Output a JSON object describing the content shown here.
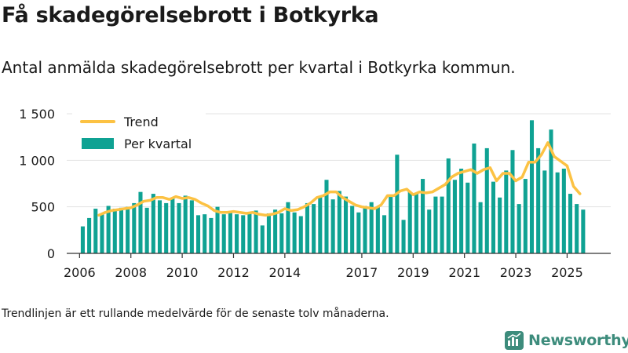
{
  "title": "Få skadegörelsebrott i Botkyrka",
  "subtitle": "Antal anmälda skadegörelsebrott per kvartal i Botkyrka kommun.",
  "footnote": "Trendlinjen är ett rullande medelvärde för de senaste tolv månaderna.",
  "brand": {
    "name": "Newsworthy"
  },
  "colors": {
    "bar": "#0fa293",
    "trend": "#fcc243",
    "axis": "#333333",
    "grid": "#e3e3e3",
    "brand": "#3d8c7c"
  },
  "chart_data": {
    "type": "bar",
    "title": "Få skadegörelsebrott i Botkyrka",
    "xlabel": "",
    "ylabel": "",
    "ylim": [
      0,
      1500
    ],
    "xlim": [
      2005.5,
      2026.7
    ],
    "yticks": [
      0,
      500,
      1000,
      1500
    ],
    "ytick_labels": [
      "0",
      "500",
      "1 000",
      "1 500"
    ],
    "xticks": [
      2006,
      2008,
      2010,
      2012,
      2014,
      2017,
      2019,
      2021,
      2023,
      2025
    ],
    "xtick_labels": [
      "2006",
      "2008",
      "2010",
      "2012",
      "2014",
      "2017",
      "2019",
      "2021",
      "2023",
      "2025"
    ],
    "legend_position": "top-left",
    "series": [
      {
        "name": "Per kvartal",
        "type": "bar",
        "start_year": 2006,
        "values": [
          290,
          380,
          480,
          420,
          510,
          480,
          490,
          500,
          540,
          660,
          490,
          640,
          570,
          540,
          600,
          540,
          620,
          570,
          410,
          420,
          380,
          500,
          420,
          440,
          420,
          410,
          440,
          460,
          300,
          430,
          470,
          430,
          550,
          440,
          400,
          540,
          530,
          610,
          790,
          580,
          670,
          610,
          510,
          440,
          510,
          550,
          500,
          410,
          610,
          1060,
          360,
          660,
          650,
          800,
          470,
          610,
          610,
          1020,
          790,
          910,
          760,
          1180,
          550,
          1130,
          770,
          600,
          890,
          1110,
          530,
          800,
          1430,
          1130,
          890,
          1330,
          870,
          910,
          640,
          530,
          470
        ]
      },
      {
        "name": "Trend",
        "type": "line",
        "points": [
          [
            2006.75,
            410
          ],
          [
            2007.0,
            440
          ],
          [
            2007.25,
            460
          ],
          [
            2007.5,
            470
          ],
          [
            2007.75,
            480
          ],
          [
            2008.0,
            490
          ],
          [
            2008.25,
            520
          ],
          [
            2008.5,
            560
          ],
          [
            2008.75,
            570
          ],
          [
            2009.0,
            600
          ],
          [
            2009.25,
            600
          ],
          [
            2009.5,
            580
          ],
          [
            2009.75,
            610
          ],
          [
            2010.0,
            590
          ],
          [
            2010.25,
            600
          ],
          [
            2010.5,
            580
          ],
          [
            2010.75,
            540
          ],
          [
            2011.0,
            510
          ],
          [
            2011.25,
            460
          ],
          [
            2011.5,
            440
          ],
          [
            2011.75,
            440
          ],
          [
            2012.0,
            450
          ],
          [
            2012.25,
            440
          ],
          [
            2012.5,
            430
          ],
          [
            2012.75,
            440
          ],
          [
            2013.0,
            420
          ],
          [
            2013.25,
            410
          ],
          [
            2013.5,
            420
          ],
          [
            2013.75,
            440
          ],
          [
            2014.0,
            480
          ],
          [
            2014.25,
            460
          ],
          [
            2014.5,
            470
          ],
          [
            2014.75,
            500
          ],
          [
            2015.0,
            540
          ],
          [
            2015.25,
            600
          ],
          [
            2015.5,
            620
          ],
          [
            2015.75,
            660
          ],
          [
            2016.0,
            660
          ],
          [
            2016.25,
            600
          ],
          [
            2016.5,
            560
          ],
          [
            2016.75,
            520
          ],
          [
            2017.0,
            500
          ],
          [
            2017.25,
            490
          ],
          [
            2017.5,
            480
          ],
          [
            2017.75,
            520
          ],
          [
            2018.0,
            620
          ],
          [
            2018.25,
            620
          ],
          [
            2018.5,
            670
          ],
          [
            2018.75,
            690
          ],
          [
            2019.0,
            630
          ],
          [
            2019.25,
            660
          ],
          [
            2019.5,
            650
          ],
          [
            2019.75,
            660
          ],
          [
            2020.0,
            700
          ],
          [
            2020.25,
            740
          ],
          [
            2020.5,
            820
          ],
          [
            2020.75,
            860
          ],
          [
            2021.0,
            880
          ],
          [
            2021.25,
            900
          ],
          [
            2021.5,
            860
          ],
          [
            2021.75,
            900
          ],
          [
            2022.0,
            920
          ],
          [
            2022.25,
            780
          ],
          [
            2022.5,
            860
          ],
          [
            2022.75,
            860
          ],
          [
            2023.0,
            780
          ],
          [
            2023.25,
            820
          ],
          [
            2023.5,
            980
          ],
          [
            2023.75,
            980
          ],
          [
            2024.0,
            1060
          ],
          [
            2024.25,
            1190
          ],
          [
            2024.5,
            1040
          ],
          [
            2024.75,
            990
          ],
          [
            2025.0,
            940
          ],
          [
            2025.25,
            720
          ],
          [
            2025.5,
            640
          ]
        ]
      }
    ]
  }
}
